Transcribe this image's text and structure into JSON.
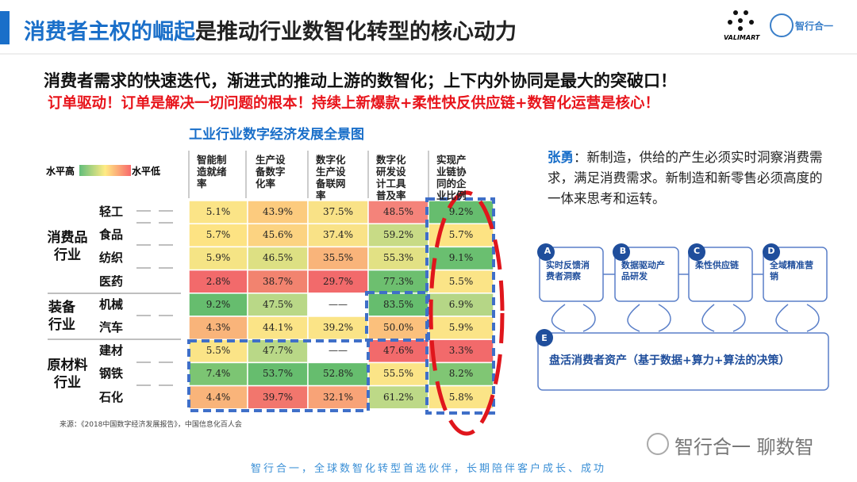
{
  "header": {
    "title_highlight": "消费者主权的崛起",
    "title_rest": "是推动行业数智化转型的核心动力",
    "logo_left": "VALIMART",
    "logo_right": "智行合一"
  },
  "subtitle": "消费者需求的快速迭代，渐进式的推动上游的数智化；上下内外协同是最大的突破口！",
  "subtitle_red": "订单驱动！订单是解决一切问题的根本！持续上新爆款+柔性快反供应链+数智化运营是核心！",
  "table": {
    "title": "工业行业数字经济发展全景图",
    "legend_high": "水平高",
    "legend_low": "水平低",
    "columns": [
      "智能制造就绪率",
      "生产设备数字化率",
      "数字化生产设备联网率",
      "数字化研发设计工具普及率",
      "实现产业链协同的企业比例"
    ],
    "groups": [
      {
        "name": "消费品行业",
        "rows": [
          0,
          1,
          2,
          3
        ]
      },
      {
        "name": "装备行业",
        "rows": [
          4,
          5
        ]
      },
      {
        "name": "原材料行业",
        "rows": [
          6,
          7,
          8
        ]
      }
    ],
    "rows": [
      {
        "label": "轻工",
        "cells": [
          {
            "text": "5.1%",
            "color": "#fbe487"
          },
          {
            "text": "43.9%",
            "color": "#fccb7e"
          },
          {
            "text": "37.5%",
            "color": "#f9e287"
          },
          {
            "text": "48.5%",
            "color": "#f4837a"
          },
          {
            "text": "9.2%",
            "color": "#66bd6e"
          }
        ]
      },
      {
        "label": "食品",
        "cells": [
          {
            "text": "5.7%",
            "color": "#fde383"
          },
          {
            "text": "45.6%",
            "color": "#fcd381"
          },
          {
            "text": "37.4%",
            "color": "#f9e287"
          },
          {
            "text": "59.2%",
            "color": "#c8db86"
          },
          {
            "text": "5.7%",
            "color": "#fde383"
          }
        ]
      },
      {
        "label": "纺织",
        "cells": [
          {
            "text": "5.9%",
            "color": "#f5e485"
          },
          {
            "text": "46.5%",
            "color": "#dde083"
          },
          {
            "text": "35.5%",
            "color": "#f9b47a"
          },
          {
            "text": "55.3%",
            "color": "#e2e184"
          },
          {
            "text": "9.1%",
            "color": "#6abf70"
          }
        ]
      },
      {
        "label": "医药",
        "cells": [
          {
            "text": "2.8%",
            "color": "#f26a6b"
          },
          {
            "text": "38.7%",
            "color": "#f2836f"
          },
          {
            "text": "29.7%",
            "color": "#f26a6b"
          },
          {
            "text": "77.3%",
            "color": "#6dbf6f"
          },
          {
            "text": "5.5%",
            "color": "#fbe487"
          }
        ]
      },
      {
        "label": "机械",
        "cells": [
          {
            "text": "9.2%",
            "color": "#66bd6e"
          },
          {
            "text": "47.5%",
            "color": "#b9d887"
          },
          {
            "text": "——",
            "color": "#ffffff"
          },
          {
            "text": "83.5%",
            "color": "#66bd6e"
          },
          {
            "text": "6.9%",
            "color": "#b5d686"
          }
        ]
      },
      {
        "label": "汽车",
        "cells": [
          {
            "text": "4.3%",
            "color": "#f9b47a"
          },
          {
            "text": "44.1%",
            "color": "#fbe487"
          },
          {
            "text": "39.2%",
            "color": "#fbe487"
          },
          {
            "text": "50.0%",
            "color": "#fbc07c"
          },
          {
            "text": "5.9%",
            "color": "#fbe487"
          }
        ]
      },
      {
        "label": "建材",
        "cells": [
          {
            "text": "5.5%",
            "color": "#fbe487"
          },
          {
            "text": "47.7%",
            "color": "#b9d887"
          },
          {
            "text": "——",
            "color": "#ffffff"
          },
          {
            "text": "47.6%",
            "color": "#f26a6b"
          },
          {
            "text": "3.3%",
            "color": "#f26a6b"
          }
        ]
      },
      {
        "label": "钢铁",
        "cells": [
          {
            "text": "7.4%",
            "color": "#7cc573"
          },
          {
            "text": "53.7%",
            "color": "#66bd6e"
          },
          {
            "text": "52.8%",
            "color": "#66bd6e"
          },
          {
            "text": "55.5%",
            "color": "#fbe487"
          },
          {
            "text": "8.2%",
            "color": "#80c674"
          }
        ]
      },
      {
        "label": "石化",
        "cells": [
          {
            "text": "4.4%",
            "color": "#f9b47a"
          },
          {
            "text": "39.7%",
            "color": "#f2766d"
          },
          {
            "text": "32.1%",
            "color": "#f8a377"
          },
          {
            "text": "61.2%",
            "color": "#bdd987"
          },
          {
            "text": "5.8%",
            "color": "#fbe487"
          }
        ]
      }
    ],
    "source": "来源：《2018中国数字经济发展报告》，中国信息化百人会"
  },
  "quote": {
    "speaker": "张勇",
    "text": "：新制造，供给的产生必须实时洞察消费需求，满足消费需求。新制造和新零售必须高度的一体来思考和运转。"
  },
  "diagram": {
    "nodes": [
      {
        "letter": "A",
        "label": "实时反馈消费者洞察"
      },
      {
        "letter": "B",
        "label": "数据驱动产品研发"
      },
      {
        "letter": "C",
        "label": "柔性供应链"
      },
      {
        "letter": "D",
        "label": "全域精准营销"
      },
      {
        "letter": "E",
        "label": "盘活消费者资产（基于数据+算力+算法的决策）"
      }
    ]
  },
  "watermark": "智行合一 聊数智",
  "footer": "智行合一，全球数智化转型首选伙伴，长期陪伴客户成长、成功"
}
